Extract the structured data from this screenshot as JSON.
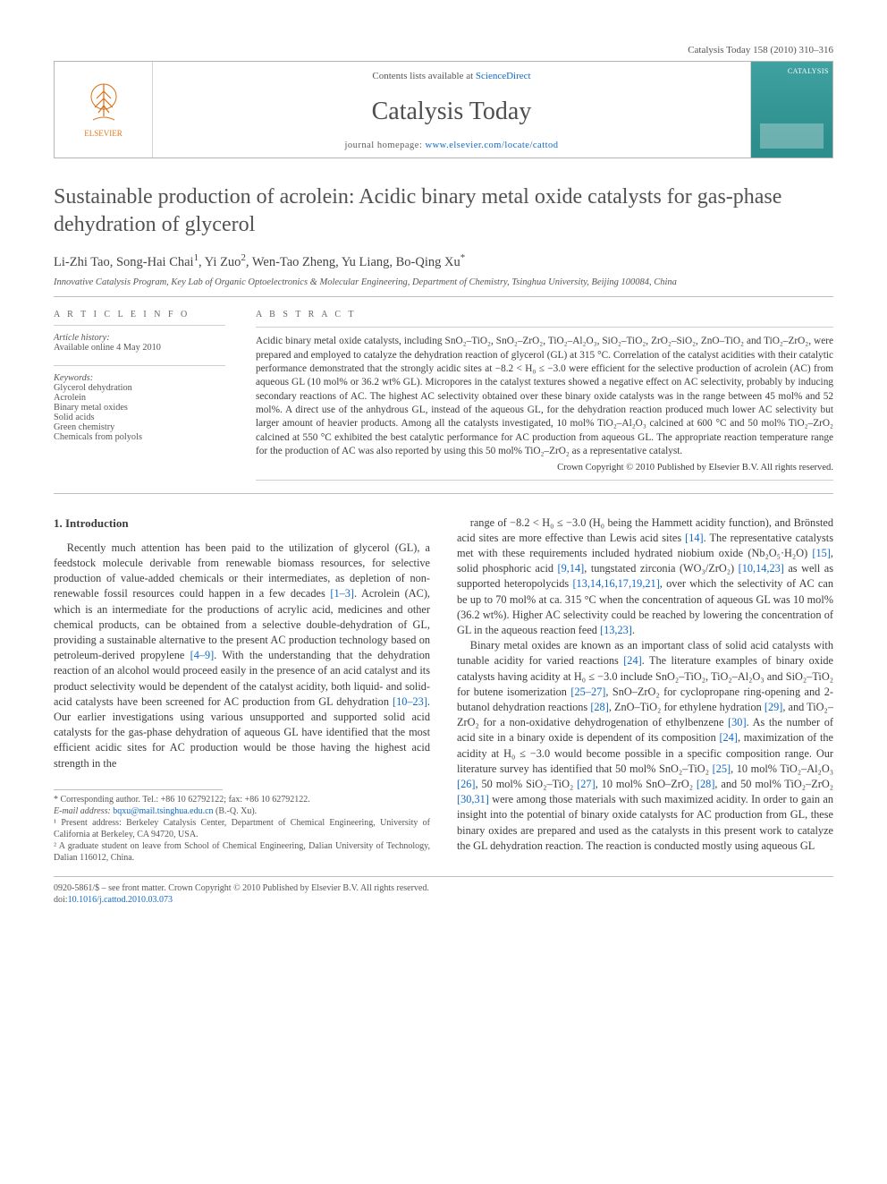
{
  "page_bg": "#ffffff",
  "text_color": "#3a3a3a",
  "link_color": "#1169c6",
  "rule_color": "#bdbdbd",
  "running_head": "Catalysis Today 158 (2010) 310–316",
  "header": {
    "contents_line_pre": "Contents lists available at ",
    "contents_link": "ScienceDirect",
    "journal_title": "Catalysis Today",
    "homepage_pre": "journal homepage: ",
    "homepage_link": "www.elsevier.com/locate/cattod",
    "publisher_name": "ELSEVIER",
    "cover_label": "CATALYSIS",
    "cover_bg": "#2d8f8d"
  },
  "article": {
    "title": "Sustainable production of acrolein: Acidic binary metal oxide catalysts for gas-phase dehydration of glycerol",
    "authors_html": "Li-Zhi Tao, Song-Hai Chai<sup>1</sup>, Yi Zuo<sup>2</sup>, Wen-Tao Zheng, Yu Liang, Bo-Qing Xu<sup>*</sup>",
    "affiliation": "Innovative Catalysis Program, Key Lab of Organic Optoelectronics & Molecular Engineering, Department of Chemistry, Tsinghua University, Beijing 100084, China"
  },
  "info": {
    "section_label": "A R T I C L E   I N F O",
    "history_label": "Article history:",
    "history_line": "Available online 4 May 2010",
    "keywords_label": "Keywords:",
    "keywords": [
      "Glycerol dehydration",
      "Acrolein",
      "Binary metal oxides",
      "Solid acids",
      "Green chemistry",
      "Chemicals from polyols"
    ]
  },
  "abstract": {
    "section_label": "A B S T R A C T",
    "text": "Acidic binary metal oxide catalysts, including SnO₂–TiO₂, SnO₂–ZrO₂, TiO₂–Al₂O₃, SiO₂–TiO₂, ZrO₂–SiO₂, ZnO–TiO₂ and TiO₂–ZrO₂, were prepared and employed to catalyze the dehydration reaction of glycerol (GL) at 315 °C. Correlation of the catalyst acidities with their catalytic performance demonstrated that the strongly acidic sites at −8.2 < H₀ ≤ −3.0 were efficient for the selective production of acrolein (AC) from aqueous GL (10 mol% or 36.2 wt% GL). Micropores in the catalyst textures showed a negative effect on AC selectivity, probably by inducing secondary reactions of AC. The highest AC selectivity obtained over these binary oxide catalysts was in the range between 45 mol% and 52 mol%. A direct use of the anhydrous GL, instead of the aqueous GL, for the dehydration reaction produced much lower AC selectivity but larger amount of heavier products. Among all the catalysts investigated, 10 mol% TiO₂–Al₂O₃ calcined at 600 °C and 50 mol% TiO₂–ZrO₂ calcined at 550 °C exhibited the best catalytic performance for AC production from aqueous GL. The appropriate reaction temperature range for the production of AC was also reported by using this 50 mol% TiO₂–ZrO₂ as a representative catalyst.",
    "copyright": "Crown Copyright © 2010 Published by Elsevier B.V. All rights reserved."
  },
  "body": {
    "section_heading": "1. Introduction",
    "para1": "Recently much attention has been paid to the utilization of glycerol (GL), a feedstock molecule derivable from renewable biomass resources, for selective production of value-added chemicals or their intermediates, as depletion of non-renewable fossil resources could happen in a few decades [1–3]. Acrolein (AC), which is an intermediate for the productions of acrylic acid, medicines and other chemical products, can be obtained from a selective double-dehydration of GL, providing a sustainable alternative to the present AC production technology based on petroleum-derived propylene [4–9]. With the understanding that the dehydration reaction of an alcohol would proceed easily in the presence of an acid catalyst and its product selectivity would be dependent of the catalyst acidity, both liquid- and solid-acid catalysts have been screened for AC production from GL dehydration [10–23]. Our earlier investigations using various unsupported and supported solid acid catalysts for the gas-phase dehydration of aqueous GL have identified that the most efficient acidic sites for AC production would be those having the highest acid strength in the",
    "para2": "range of −8.2 < H₀ ≤ −3.0 (H₀ being the Hammett acidity function), and Brönsted acid sites are more effective than Lewis acid sites [14]. The representative catalysts met with these requirements included hydrated niobium oxide (Nb₂O₅·H₂O) [15], solid phosphoric acid [9,14], tungstated zirconia (WO₃/ZrO₂) [10,14,23] as well as supported heteropolycids [13,14,16,17,19,21], over which the selectivity of AC can be up to 70 mol% at ca. 315 °C when the concentration of aqueous GL was 10 mol% (36.2 wt%). Higher AC selectivity could be reached by lowering the concentration of GL in the aqueous reaction feed [13,23].",
    "para3": "Binary metal oxides are known as an important class of solid acid catalysts with tunable acidity for varied reactions [24]. The literature examples of binary oxide catalysts having acidity at H₀ ≤ −3.0 include SnO₂–TiO₂, TiO₂–Al₂O₃ and SiO₂–TiO₂ for butene isomerization [25–27], SnO–ZrO₂ for cyclopropane ring-opening and 2-butanol dehydration reactions [28], ZnO–TiO₂ for ethylene hydration [29], and TiO₂–ZrO₂ for a non-oxidative dehydrogenation of ethylbenzene [30]. As the number of acid site in a binary oxide is dependent of its composition [24], maximization of the acidity at H₀ ≤ −3.0 would become possible in a specific composition range. Our literature survey has identified that 50 mol% SnO₂–TiO₂ [25], 10 mol% TiO₂–Al₂O₃ [26], 50 mol% SiO₂–TiO₂ [27], 10 mol% SnO–ZrO₂ [28], and 50 mol% TiO₂–ZrO₂ [30,31] were among those materials with such maximized acidity. In order to gain an insight into the potential of binary oxide catalysts for AC production from GL, these binary oxides are prepared and used as the catalysts in this present work to catalyze the GL dehydration reaction. The reaction is conducted mostly using aqueous GL"
  },
  "footnotes": {
    "corr": "* Corresponding author. Tel.: +86 10 62792122; fax: +86 10 62792122.",
    "email_lbl": "E-mail address: ",
    "email": "bqxu@mail.tsinghua.edu.cn",
    "email_tail": " (B.-Q. Xu).",
    "fn1": "¹ Present address: Berkeley Catalysis Center, Department of Chemical Engineering, University of California at Berkeley, CA 94720, USA.",
    "fn2": "² A graduate student on leave from School of Chemical Engineering, Dalian University of Technology, Dalian 116012, China."
  },
  "tail": {
    "line1": "0920-5861/$ – see front matter. Crown Copyright © 2010 Published by Elsevier B.V. All rights reserved.",
    "doi_lbl": "doi:",
    "doi": "10.1016/j.cattod.2010.03.073"
  }
}
